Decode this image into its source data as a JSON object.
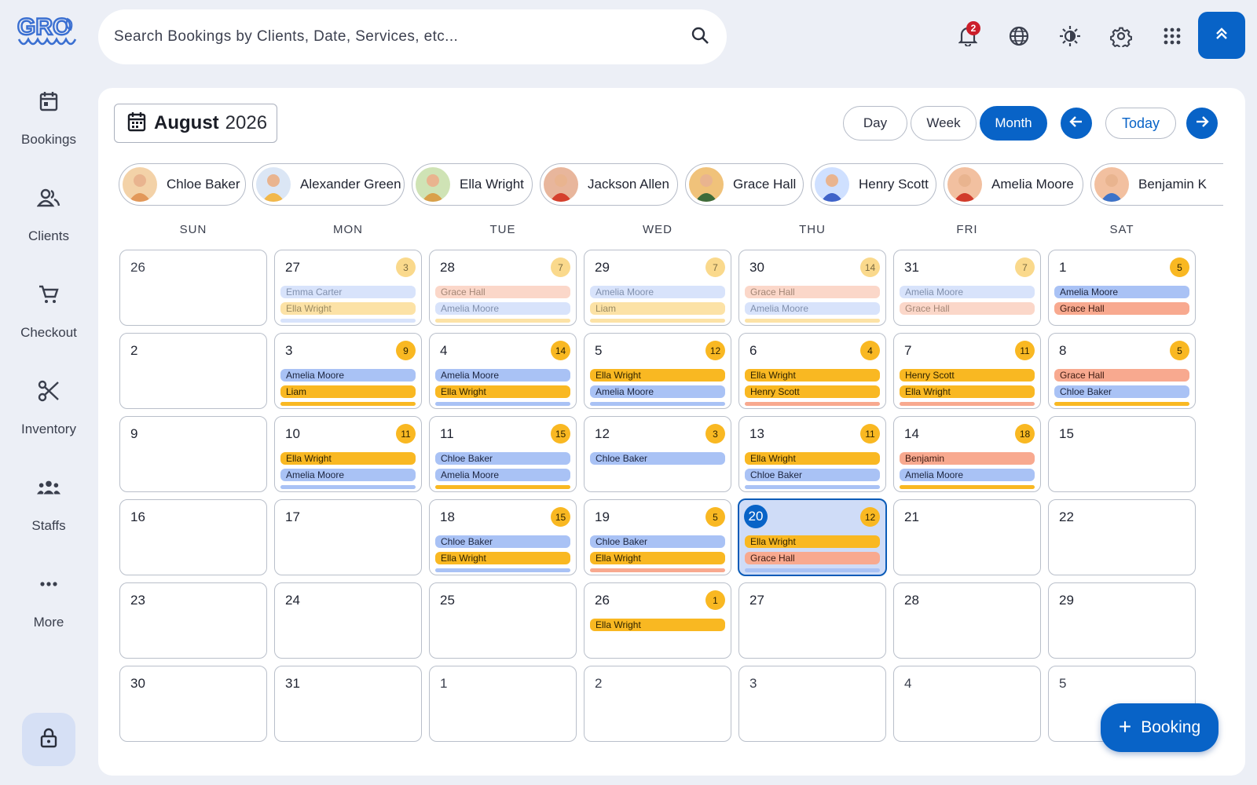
{
  "app": {
    "logo_text": "GRO"
  },
  "sidebar": {
    "items": [
      {
        "label": "Bookings",
        "icon": "calendar-icon"
      },
      {
        "label": "Clients",
        "icon": "users-icon"
      },
      {
        "label": "Checkout",
        "icon": "cart-icon"
      },
      {
        "label": "Inventory",
        "icon": "scissors-icon"
      },
      {
        "label": "Staffs",
        "icon": "staff-group-icon"
      },
      {
        "label": "More",
        "icon": "more-dots-icon"
      }
    ],
    "lock_icon": "lock-icon"
  },
  "search": {
    "placeholder": "Search Bookings by Clients, Date, Services, etc..."
  },
  "topbar": {
    "notification_count": "2"
  },
  "calendar": {
    "month_name": "August",
    "year": "2026",
    "views": [
      "Day",
      "Week",
      "Month"
    ],
    "active_view": "Month",
    "today_label": "Today",
    "weekdays": [
      "SUN",
      "MON",
      "TUE",
      "WED",
      "THU",
      "FRI",
      "SAT"
    ],
    "staff": [
      "Chloe Baker",
      "Alexander Green",
      "Ella Wright",
      "Jackson Allen",
      "Grace Hall",
      "Henry Scott",
      "Amelia Moore",
      "Benjamin K"
    ],
    "weeks": [
      [
        {
          "day": "26",
          "other": true
        },
        {
          "day": "27",
          "faded": true,
          "count": "3",
          "events": [
            [
              "Emma Carter",
              "blue"
            ],
            [
              "Ella Wright",
              "yellow"
            ]
          ],
          "more": "blue"
        },
        {
          "day": "28",
          "faded": true,
          "count": "7",
          "events": [
            [
              "Grace Hall",
              "peach"
            ],
            [
              "Amelia Moore",
              "blue"
            ]
          ],
          "more": "yellow"
        },
        {
          "day": "29",
          "faded": true,
          "count": "7",
          "events": [
            [
              "Amelia Moore",
              "blue"
            ],
            [
              "Liam",
              "yellow"
            ]
          ],
          "more": "yellow"
        },
        {
          "day": "30",
          "faded": true,
          "count": "14",
          "events": [
            [
              "Grace Hall",
              "peach"
            ],
            [
              "Amelia Moore",
              "blue"
            ]
          ],
          "more": "yellow"
        },
        {
          "day": "31",
          "faded": true,
          "count": "7",
          "events": [
            [
              "Amelia Moore",
              "blue"
            ],
            [
              "Grace Hall",
              "peach"
            ]
          ],
          "more": ""
        },
        {
          "day": "1",
          "count": "5",
          "events": [
            [
              "Amelia Moore",
              "blue"
            ],
            [
              "Grace Hall",
              "peach"
            ]
          ],
          "more": ""
        }
      ],
      [
        {
          "day": "2"
        },
        {
          "day": "3",
          "count": "9",
          "events": [
            [
              "Amelia Moore",
              "blue"
            ],
            [
              "Liam",
              "yellow"
            ]
          ],
          "more": "yellow"
        },
        {
          "day": "4",
          "count": "14",
          "events": [
            [
              "Amelia Moore",
              "blue"
            ],
            [
              "Ella Wright",
              "yellow"
            ]
          ],
          "more": "blue"
        },
        {
          "day": "5",
          "count": "12",
          "events": [
            [
              "Ella Wright",
              "yellow"
            ],
            [
              "Amelia Moore",
              "blue"
            ]
          ],
          "more": "blue"
        },
        {
          "day": "6",
          "count": "4",
          "events": [
            [
              "Ella Wright",
              "yellow"
            ],
            [
              "Henry Scott",
              "yellow"
            ]
          ],
          "more": "peach"
        },
        {
          "day": "7",
          "count": "11",
          "events": [
            [
              "Henry Scott",
              "yellow"
            ],
            [
              "Ella Wright",
              "yellow"
            ]
          ],
          "more": "peach"
        },
        {
          "day": "8",
          "count": "5",
          "events": [
            [
              "Grace Hall",
              "peach"
            ],
            [
              "Chloe Baker",
              "blue"
            ]
          ],
          "more": "yellow"
        }
      ],
      [
        {
          "day": "9"
        },
        {
          "day": "10",
          "count": "11",
          "events": [
            [
              "Ella Wright",
              "yellow"
            ],
            [
              "Amelia Moore",
              "blue"
            ]
          ],
          "more": "blue"
        },
        {
          "day": "11",
          "count": "15",
          "events": [
            [
              "Chloe Baker",
              "blue"
            ],
            [
              "Amelia Moore",
              "blue"
            ]
          ],
          "more": "yellow"
        },
        {
          "day": "12",
          "count": "3",
          "events": [
            [
              "Chloe Baker",
              "blue"
            ]
          ],
          "more": ""
        },
        {
          "day": "13",
          "count": "11",
          "events": [
            [
              "Ella Wright",
              "yellow"
            ],
            [
              "Chloe Baker",
              "blue"
            ]
          ],
          "more": "blue"
        },
        {
          "day": "14",
          "count": "18",
          "events": [
            [
              "Benjamin",
              "peach"
            ],
            [
              "Amelia Moore",
              "blue"
            ]
          ],
          "more": "yellow"
        },
        {
          "day": "15"
        }
      ],
      [
        {
          "day": "16"
        },
        {
          "day": "17"
        },
        {
          "day": "18",
          "count": "15",
          "events": [
            [
              "Chloe Baker",
              "blue"
            ],
            [
              "Ella Wright",
              "yellow"
            ]
          ],
          "more": "blue"
        },
        {
          "day": "19",
          "count": "5",
          "events": [
            [
              "Chloe Baker",
              "blue"
            ],
            [
              "Ella Wright",
              "yellow"
            ]
          ],
          "more": "peach"
        },
        {
          "day": "20",
          "today": true,
          "count": "12",
          "events": [
            [
              "Ella Wright",
              "yellow"
            ],
            [
              "Grace Hall",
              "peach"
            ]
          ],
          "more": "blue"
        },
        {
          "day": "21"
        },
        {
          "day": "22"
        }
      ],
      [
        {
          "day": "23"
        },
        {
          "day": "24"
        },
        {
          "day": "25"
        },
        {
          "day": "26",
          "count": "1",
          "events": [
            [
              "Ella Wright",
              "yellow"
            ]
          ],
          "more": ""
        },
        {
          "day": "27"
        },
        {
          "day": "28"
        },
        {
          "day": "29"
        }
      ],
      [
        {
          "day": "30"
        },
        {
          "day": "31"
        },
        {
          "day": "1",
          "other": true
        },
        {
          "day": "2",
          "other": true
        },
        {
          "day": "3",
          "other": true
        },
        {
          "day": "4",
          "other": true
        },
        {
          "day": "5",
          "other": true
        }
      ]
    ]
  },
  "fab": {
    "label": "Booking"
  },
  "colors": {
    "primary": "#0863c7",
    "event_blue": "#a9c2f5",
    "event_yellow": "#f9b822",
    "event_peach": "#f8a98f",
    "today_bg": "#cfdcf7"
  }
}
